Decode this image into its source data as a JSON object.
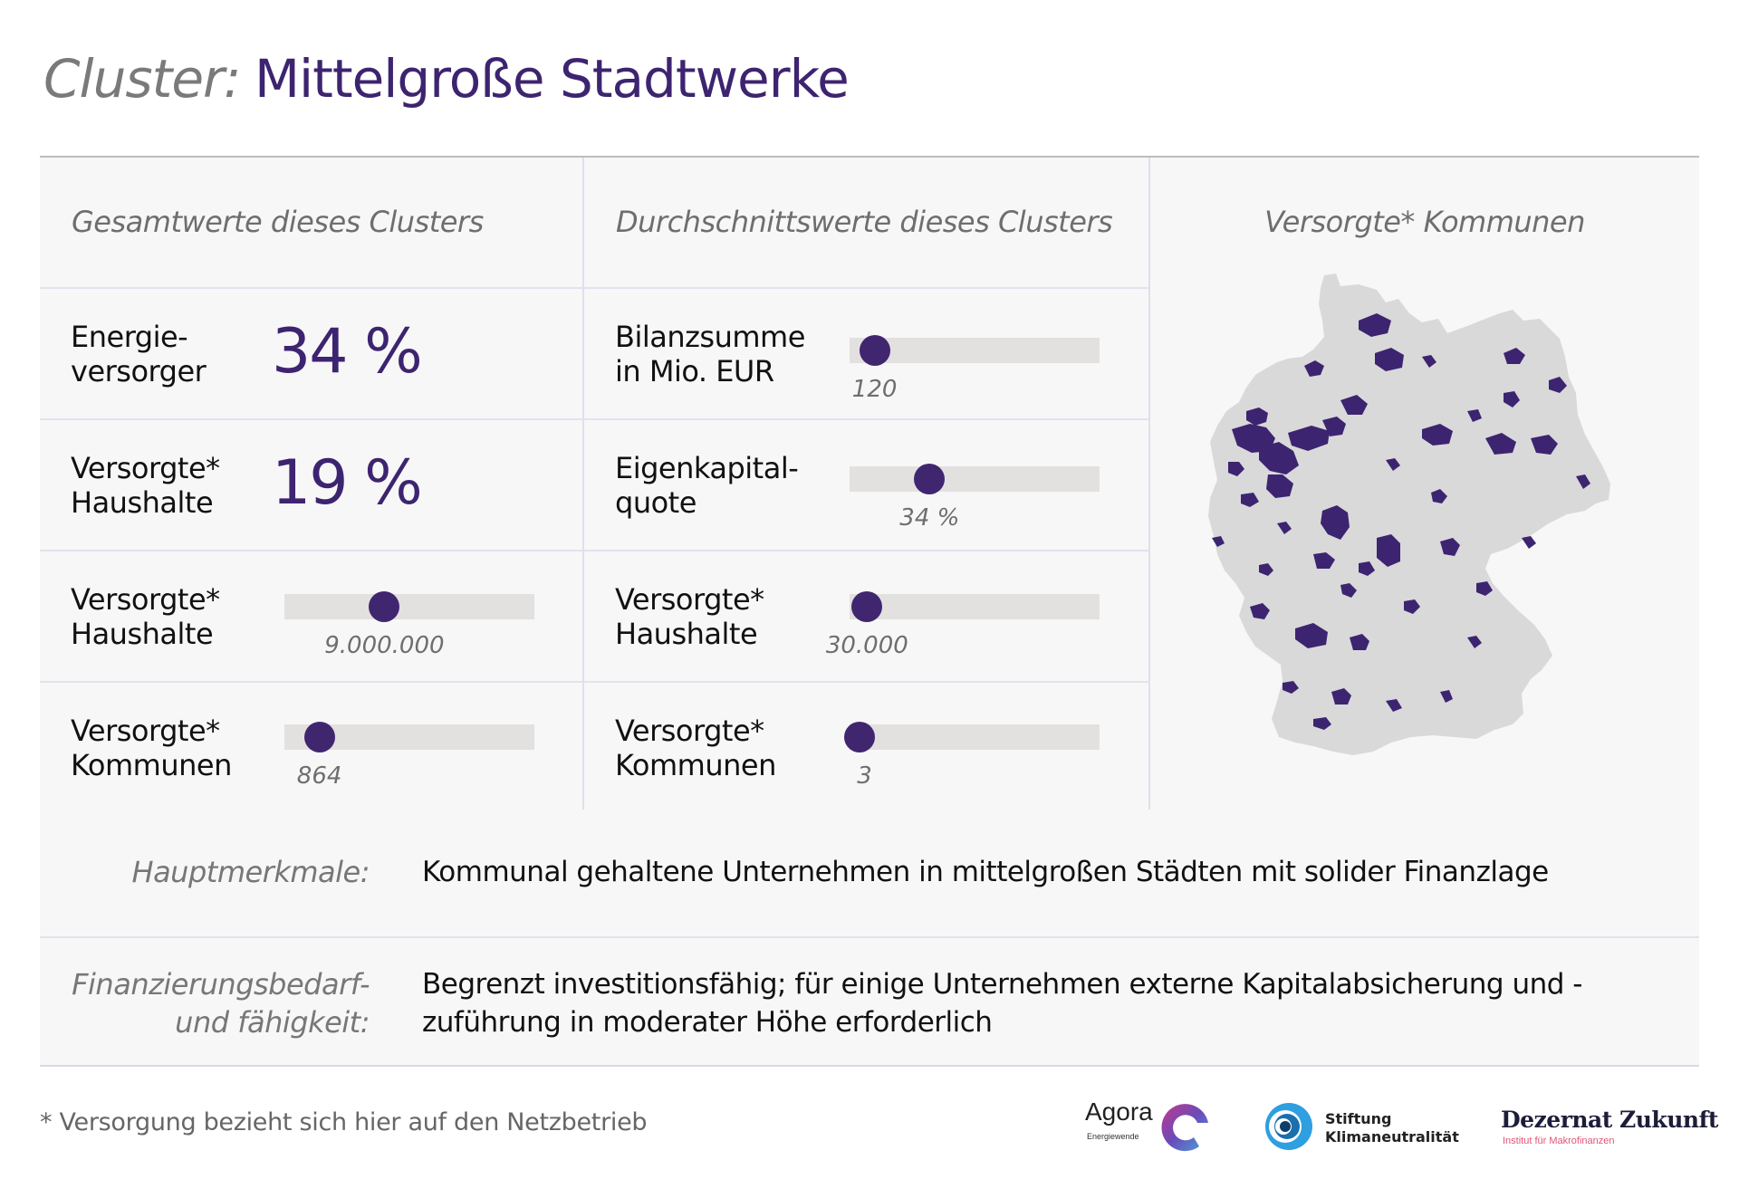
{
  "header": {
    "title_prefix": "Cluster:",
    "title_main": "Mittelgroße Stadtwerke"
  },
  "columns": {
    "totals": {
      "heading": "Gesamtwerte dieses Clusters",
      "rows": [
        {
          "label": "Energie-\nversorger",
          "type": "big",
          "value": "34 %"
        },
        {
          "label": "Versorgte*\nHaushalte",
          "type": "big",
          "value": "19 %"
        },
        {
          "label": "Versorgte*\nHaushalte",
          "type": "slider",
          "value": "9.000.000",
          "knob_pct": 40
        },
        {
          "label": "Versorgte*\nKommunen",
          "type": "slider",
          "value": "864",
          "knob_pct": 14
        }
      ]
    },
    "averages": {
      "heading": "Durchschnittswerte dieses Clusters",
      "rows": [
        {
          "label": "Bilanzsumme\nin Mio. EUR",
          "type": "slider",
          "value": "120",
          "knob_pct": 10
        },
        {
          "label": "Eigenkapital-\nquote",
          "type": "slider",
          "value": "34 %",
          "knob_pct": 32
        },
        {
          "label": "Versorgte*\nHaushalte",
          "type": "slider",
          "value": "30.000",
          "knob_pct": 7
        },
        {
          "label": "Versorgte*\nKommunen",
          "type": "slider",
          "value": "3",
          "knob_pct": 4
        }
      ]
    },
    "map": {
      "heading": "Versorgte* Kommunen",
      "land_color": "#d9d9d9",
      "highlight_color": "#3d2470"
    }
  },
  "info": {
    "rows": [
      {
        "key": "Hauptmerkmale:",
        "value": "Kommunal gehaltene Unternehmen in mittelgroßen Städten mit solider Finanzlage"
      },
      {
        "key": "Finanzierungsbedarf-\nund fähigkeit:",
        "value": "Begrenzt investitionsfähig; für einige Unternehmen externe Kapitalabsicherung und -zuführung in moderater Höhe erforderlich"
      }
    ]
  },
  "footer": {
    "footnote": "* Versorgung bezieht sich hier auf den Netzbetrieb",
    "logos": {
      "agora": {
        "name": "Agora",
        "sub": "Energiewende"
      },
      "stiftung": {
        "name": "Stiftung\nKlimaneutralität"
      },
      "dezernat": {
        "name": "Dezernat Zukunft",
        "sub": "Institut für Makrofinanzen"
      }
    }
  },
  "colors": {
    "accent": "#3d2470",
    "panel_bg": "#f7f7f7",
    "slider_track": "#e3e0e0",
    "muted_text": "#6e6e6e"
  }
}
